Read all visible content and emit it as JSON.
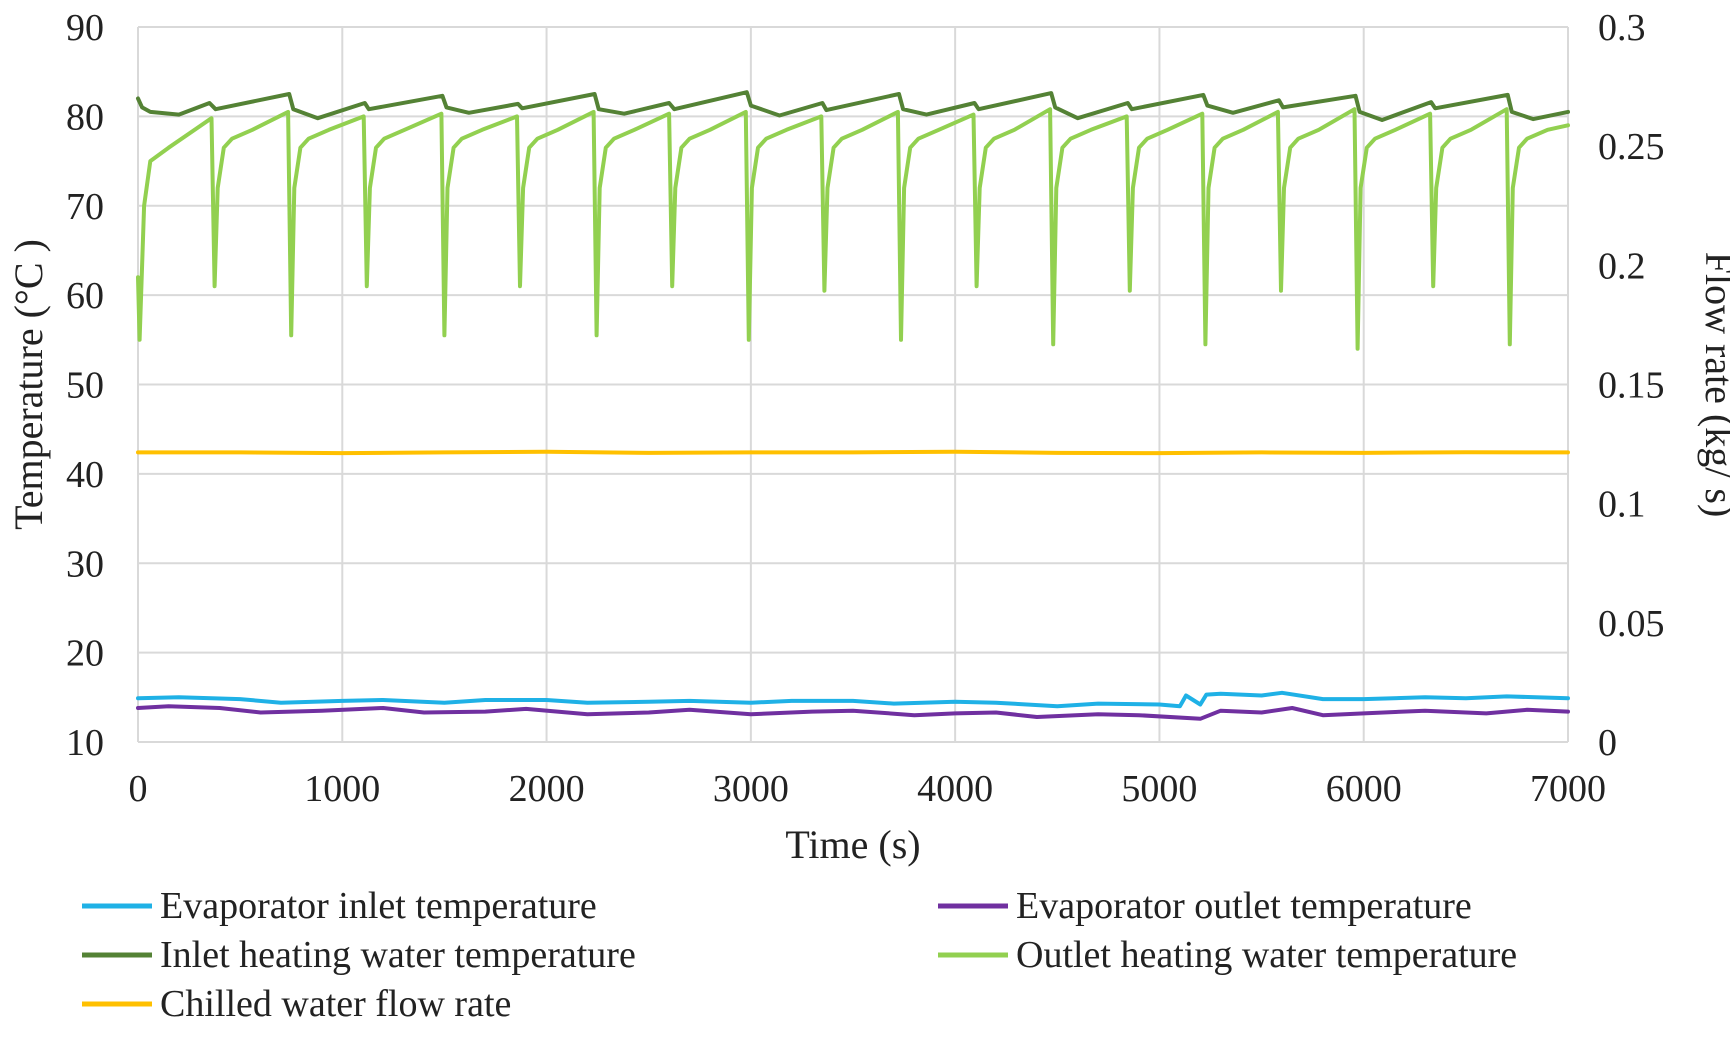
{
  "chart_data": {
    "type": "line",
    "title": "",
    "xlabel": "Time (s)",
    "ylabel": "Temperature (°C )",
    "y2label": "Flow rate (kg/ s)",
    "xlim": [
      0,
      7000
    ],
    "ylim": [
      10,
      90
    ],
    "y2lim": [
      0,
      0.3
    ],
    "xticks": [
      0,
      1000,
      2000,
      3000,
      4000,
      5000,
      6000,
      7000
    ],
    "xtick_labels": [
      "0",
      "1000",
      "2000",
      "3000",
      "4000",
      "5000",
      "6000",
      "7000"
    ],
    "yticks": [
      10,
      20,
      30,
      40,
      50,
      60,
      70,
      80,
      90
    ],
    "ytick_labels": [
      "10",
      "20",
      "30",
      "40",
      "50",
      "60",
      "70",
      "80",
      "90"
    ],
    "y2ticks": [
      0,
      0.05,
      0.1,
      0.15,
      0.2,
      0.25,
      0.3
    ],
    "y2tick_labels": [
      "0",
      "0.05",
      "0.1",
      "0.15",
      "0.2",
      "0.25",
      "0.3"
    ],
    "grid": true,
    "legend_position": "bottom",
    "cycle_starts": [
      0,
      375,
      750,
      1120,
      1500,
      1870,
      2245,
      2615,
      2990,
      3360,
      3735,
      4105,
      4480,
      4855,
      5225,
      5595,
      5970,
      6340,
      6715
    ],
    "outlet_dip_minima": [
      55,
      61,
      55.5,
      61,
      55.5,
      61,
      55.5,
      61,
      55,
      60.5,
      55,
      61,
      54.5,
      60.5,
      54.5,
      60.5,
      54,
      61,
      54.5
    ],
    "series": [
      {
        "name": "Evaporator inlet temperature",
        "axis": "left",
        "color": "#1FB1E6",
        "x": [
          0,
          200,
          500,
          700,
          1000,
          1200,
          1500,
          1700,
          2000,
          2200,
          2500,
          2700,
          3000,
          3200,
          3500,
          3700,
          4000,
          4200,
          4500,
          4700,
          5000,
          5100,
          5130,
          5200,
          5230,
          5300,
          5500,
          5600,
          5800,
          6000,
          6300,
          6500,
          6700,
          7000
        ],
        "values": [
          14.9,
          15.0,
          14.8,
          14.4,
          14.6,
          14.7,
          14.4,
          14.7,
          14.7,
          14.4,
          14.5,
          14.6,
          14.4,
          14.6,
          14.6,
          14.3,
          14.5,
          14.4,
          14.0,
          14.3,
          14.2,
          14.0,
          15.2,
          14.2,
          15.3,
          15.4,
          15.2,
          15.5,
          14.8,
          14.8,
          15.0,
          14.9,
          15.1,
          14.9
        ]
      },
      {
        "name": "Evaporator outlet temperature",
        "axis": "left",
        "color": "#7030A0",
        "x": [
          0,
          150,
          400,
          600,
          900,
          1200,
          1400,
          1700,
          1900,
          2200,
          2500,
          2700,
          3000,
          3300,
          3500,
          3800,
          4000,
          4200,
          4400,
          4700,
          4900,
          5200,
          5300,
          5500,
          5650,
          5800,
          6000,
          6300,
          6600,
          6800,
          7000
        ],
        "values": [
          13.8,
          14.0,
          13.8,
          13.3,
          13.5,
          13.8,
          13.3,
          13.4,
          13.7,
          13.1,
          13.3,
          13.6,
          13.1,
          13.4,
          13.5,
          13.0,
          13.2,
          13.3,
          12.8,
          13.1,
          13.0,
          12.6,
          13.5,
          13.3,
          13.8,
          13.0,
          13.2,
          13.5,
          13.2,
          13.6,
          13.4
        ]
      },
      {
        "name": "Inlet heating water temperature",
        "axis": "left",
        "color": "#548235",
        "x": [
          0,
          20,
          60,
          200,
          350,
          380,
          740,
          760,
          880,
          1110,
          1130,
          1490,
          1510,
          1620,
          1860,
          1880,
          2235,
          2255,
          2380,
          2600,
          2625,
          2980,
          3000,
          3140,
          3350,
          3370,
          3725,
          3745,
          3860,
          4095,
          4115,
          4470,
          4490,
          4600,
          4845,
          4865,
          5215,
          5235,
          5360,
          5585,
          5605,
          5960,
          5980,
          6090,
          6330,
          6350,
          6705,
          6725,
          6830,
          7000
        ],
        "values": [
          82,
          81,
          80.5,
          80.2,
          81.5,
          80.8,
          82.5,
          80.8,
          79.8,
          81.5,
          80.8,
          82.3,
          81.0,
          80.4,
          81.4,
          80.9,
          82.5,
          80.8,
          80.3,
          81.5,
          80.8,
          82.7,
          81.2,
          80.1,
          81.5,
          80.7,
          82.5,
          80.8,
          80.2,
          81.5,
          80.8,
          82.6,
          81.0,
          79.8,
          81.5,
          80.8,
          82.4,
          81.2,
          80.4,
          81.8,
          81.0,
          82.3,
          80.5,
          79.6,
          81.6,
          80.9,
          82.4,
          80.5,
          79.7,
          80.5
        ]
      },
      {
        "name": "Outlet heating water temperature",
        "axis": "left",
        "color": "#92D050",
        "x": [
          0,
          8,
          30,
          60,
          150,
          360,
          375,
          390,
          420,
          460,
          560,
          735,
          750,
          765,
          795,
          835,
          935,
          1105,
          1120,
          1135,
          1165,
          1205,
          1305,
          1485,
          1500,
          1515,
          1545,
          1585,
          1685,
          1855,
          1870,
          1885,
          1915,
          1955,
          2055,
          2230,
          2245,
          2260,
          2290,
          2330,
          2430,
          2600,
          2615,
          2630,
          2660,
          2700,
          2800,
          2975,
          2990,
          3005,
          3035,
          3075,
          3175,
          3345,
          3360,
          3375,
          3405,
          3445,
          3545,
          3720,
          3735,
          3750,
          3780,
          3820,
          3920,
          4090,
          4105,
          4120,
          4150,
          4190,
          4290,
          4465,
          4480,
          4495,
          4525,
          4565,
          4665,
          4840,
          4855,
          4870,
          4900,
          4940,
          5040,
          5210,
          5225,
          5240,
          5270,
          5310,
          5410,
          5580,
          5595,
          5610,
          5640,
          5680,
          5780,
          5955,
          5970,
          5985,
          6015,
          6055,
          6155,
          6325,
          6340,
          6355,
          6385,
          6425,
          6525,
          6700,
          6715,
          6730,
          6760,
          6800,
          6900,
          7000
        ],
        "values": [
          62,
          55,
          70,
          75,
          76.5,
          79.8,
          61,
          72,
          76.5,
          77.5,
          78.5,
          80.5,
          55.5,
          72,
          76.5,
          77.5,
          78.5,
          80,
          61,
          72,
          76.5,
          77.5,
          78.5,
          80.3,
          55.5,
          72,
          76.5,
          77.5,
          78.5,
          80,
          61,
          72,
          76.5,
          77.5,
          78.5,
          80.5,
          55.5,
          72,
          76.5,
          77.5,
          78.5,
          80.3,
          61,
          72,
          76.5,
          77.5,
          78.5,
          80.5,
          55,
          72,
          76.5,
          77.5,
          78.5,
          80,
          60.5,
          72,
          76.5,
          77.5,
          78.5,
          80.5,
          55,
          72,
          76.5,
          77.5,
          78.5,
          80.2,
          61,
          72,
          76.5,
          77.5,
          78.5,
          80.8,
          54.5,
          72,
          76.5,
          77.5,
          78.5,
          80,
          60.5,
          72,
          76.5,
          77.5,
          78.5,
          80.3,
          54.5,
          72,
          76.5,
          77.5,
          78.5,
          80.5,
          60.5,
          72,
          76.5,
          77.5,
          78.5,
          80.8,
          54,
          72,
          76.5,
          77.5,
          78.5,
          80.3,
          61,
          72,
          76.5,
          77.5,
          78.5,
          80.8,
          54.5,
          72,
          76.5,
          77.5,
          78.5,
          79
        ]
      },
      {
        "name": "Chilled water flow rate",
        "axis": "right",
        "color": "#FFC000",
        "x": [
          0,
          500,
          1000,
          1500,
          2000,
          2500,
          3000,
          3500,
          4000,
          4500,
          5000,
          5500,
          6000,
          6500,
          7000
        ],
        "values": [
          0.1215,
          0.1215,
          0.1212,
          0.1215,
          0.1218,
          0.1213,
          0.1215,
          0.1215,
          0.1218,
          0.1213,
          0.1212,
          0.1215,
          0.1213,
          0.1216,
          0.1215
        ]
      }
    ]
  }
}
